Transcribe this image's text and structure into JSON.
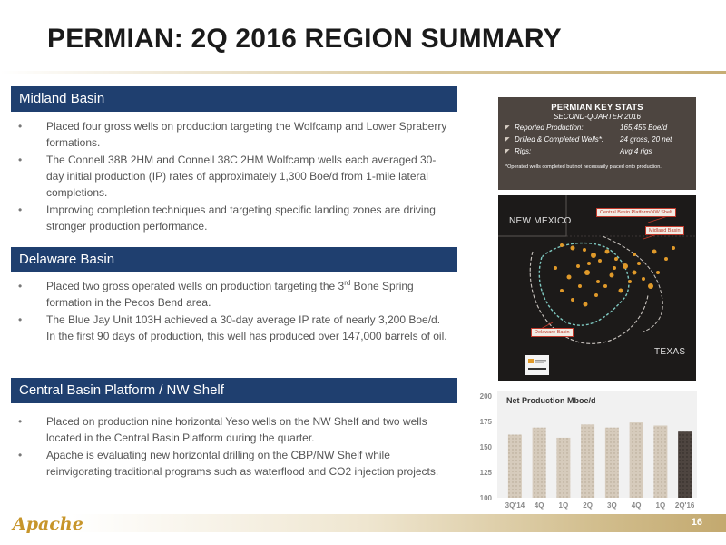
{
  "title": "PERMIAN: 2Q 2016 REGION SUMMARY",
  "sections": {
    "midland": {
      "heading": "Midland Basin",
      "bullets": [
        "Placed four gross wells on production targeting the Wolfcamp and Lower Spraberry formations.",
        "The Connell 38B 2HM and Connell 38C 2HM Wolfcamp wells each averaged 30-day initial production (IP) rates of approximately 1,300 Boe/d from 1-mile lateral completions.",
        "Improving completion techniques and targeting specific landing zones are driving stronger production performance."
      ]
    },
    "delaware": {
      "heading": "Delaware Basin",
      "bullet1_pre": "Placed two gross operated wells on production targeting the 3",
      "bullet1_sup": "rd",
      "bullet1_post": " Bone Spring formation in the Pecos Bend area.",
      "bullet2": "The Blue Jay Unit 103H achieved a 30-day average IP rate of nearly 3,200 Boe/d. In the first 90 days of production, this well has produced over 147,000 barrels of oil."
    },
    "cbp": {
      "heading": "Central Basin Platform / NW Shelf",
      "bullets": [
        "Placed on production nine horizontal Yeso wells on the NW Shelf and two wells located in the Central Basin Platform during the quarter.",
        "Apache is evaluating new horizontal drilling on the CBP/NW Shelf while reinvigorating traditional programs such as waterflood and CO2 injection projects."
      ]
    }
  },
  "bullet_char": "•",
  "key_stats": {
    "title": "PERMIAN KEY STATS",
    "subtitle": "SECOND-QUARTER 2016",
    "rows": [
      {
        "label": "Reported Production:",
        "value": "165,455 Boe/d"
      },
      {
        "label": "Drilled & Completed Wells*:",
        "value": "24 gross, 20 net"
      },
      {
        "label": "Rigs:",
        "value": "Avg 4 rigs"
      }
    ],
    "footnote": "*Operated wells completed but not necessarily placed onto production."
  },
  "map": {
    "state_nm": "NEW MEXICO",
    "state_tx": "TEXAS",
    "tag_cbp": "Central Basin Platform/NW Shelf",
    "tag_midland": "Midland Basin",
    "tag_delaware": "Delaware Basin"
  },
  "chart_data": {
    "type": "bar",
    "title": "Net Production Mboe/d",
    "categories": [
      "3Q'14",
      "4Q",
      "1Q",
      "2Q",
      "3Q",
      "4Q",
      "1Q",
      "2Q'16"
    ],
    "values": [
      162,
      169,
      159,
      172,
      169,
      174,
      171,
      165
    ],
    "ylim": [
      100,
      200
    ],
    "yticks": [
      100,
      125,
      150,
      175,
      200
    ],
    "colors": {
      "bar": "#d6cbbc",
      "last_bar": "#4e4540"
    }
  },
  "page_number": "16",
  "logo_text": "Apache"
}
